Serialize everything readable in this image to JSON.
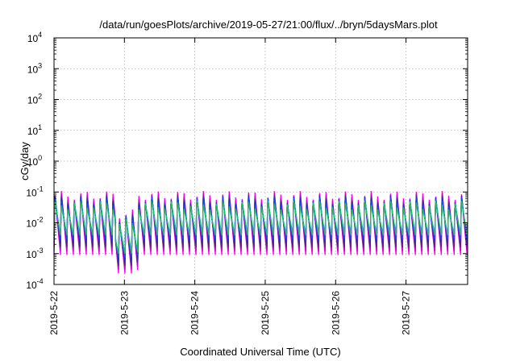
{
  "chart_data": {
    "type": "line",
    "title": "/data/run/goesPlots/archive/2019-05-27/21:00/flux/../bryn/5daysMars.plot",
    "xlabel": "Coordinated Universal Time (UTC)",
    "ylabel": "cGy/day",
    "yscale": "log",
    "ylim": [
      0.0001,
      10000
    ],
    "xlim": [
      "2019-05-22 00:00",
      "2019-05-27 21:00"
    ],
    "grid": true,
    "x_ticks": [
      "2019-5-22",
      "2019-5-23",
      "2019-5-24",
      "2019-5-25",
      "2019-5-26",
      "2019-5-27"
    ],
    "y_ticks": [
      {
        "value": 0.0001,
        "base": "10",
        "exp": "-4"
      },
      {
        "value": 0.001,
        "base": "10",
        "exp": "-3"
      },
      {
        "value": 0.01,
        "base": "10",
        "exp": "-2"
      },
      {
        "value": 0.1,
        "base": "10",
        "exp": "-1"
      },
      {
        "value": 1,
        "base": "10",
        "exp": "0"
      },
      {
        "value": 10,
        "base": "10",
        "exp": "1"
      },
      {
        "value": 100,
        "base": "10",
        "exp": "2"
      },
      {
        "value": 1000,
        "base": "10",
        "exp": "3"
      },
      {
        "value": 10000,
        "base": "10",
        "exp": "4"
      }
    ],
    "cycle_hours": 2.2,
    "peak_values": [
      0.09,
      0.075,
      0.065,
      0.06,
      0.05,
      0.04
    ],
    "min_values": [
      0.0009,
      0.0012,
      0.0016,
      0.0022,
      0.003,
      0.004
    ],
    "series_colors": [
      "#ff00ff",
      "#cc00cc",
      "#7a0fa0",
      "#2a2ad0",
      "#1050ff",
      "#00b0d0",
      "#20c060"
    ]
  }
}
